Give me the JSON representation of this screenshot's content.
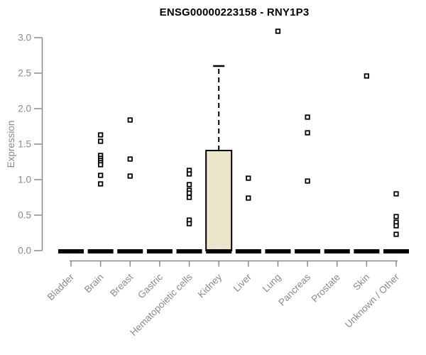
{
  "chart_data": {
    "type": "boxplot",
    "title": "ENSG00000223158 - RNY1P3",
    "ylabel": "Expression",
    "xlabel": "",
    "ylim": [
      0,
      3.0
    ],
    "yticks": [
      0.0,
      0.5,
      1.0,
      1.5,
      2.0,
      2.5,
      3.0
    ],
    "grid": false,
    "legend": false,
    "marker": "open-square",
    "categories": [
      "Bladder",
      "Brain",
      "Breast",
      "Gastric",
      "Hematopoietic cells",
      "Kidney",
      "Liver",
      "Lung",
      "Pancreas",
      "Prostate",
      "Skin",
      "Unknown / Other"
    ],
    "groups": [
      {
        "category": "Bladder",
        "median": 0,
        "points": []
      },
      {
        "category": "Brain",
        "median": 0,
        "points": [
          1.63,
          1.54,
          1.34,
          1.3,
          1.27,
          1.24,
          1.21,
          1.06,
          0.94
        ]
      },
      {
        "category": "Breast",
        "median": 0,
        "points": [
          1.84,
          1.29,
          1.05
        ]
      },
      {
        "category": "Gastric",
        "median": 0,
        "points": []
      },
      {
        "category": "Hematopoietic cells",
        "median": 0,
        "points": [
          1.13,
          1.08,
          0.93,
          0.85,
          0.81,
          0.75,
          0.43,
          0.38
        ]
      },
      {
        "category": "Kidney",
        "median": 0,
        "box": {
          "q1": 0,
          "median": 0,
          "q3": 1.41,
          "whisker_low": 0,
          "whisker_high": 2.6
        },
        "points": []
      },
      {
        "category": "Liver",
        "median": 0,
        "points": [
          1.02,
          0.74
        ]
      },
      {
        "category": "Lung",
        "median": 0,
        "points": [
          3.09
        ]
      },
      {
        "category": "Pancreas",
        "median": 0,
        "points": [
          1.88,
          1.66,
          0.98
        ]
      },
      {
        "category": "Prostate",
        "median": 0,
        "points": []
      },
      {
        "category": "Skin",
        "median": 0,
        "points": [
          2.46
        ]
      },
      {
        "category": "Unknown / Other",
        "median": 0,
        "points": [
          0.8,
          0.48,
          0.4,
          0.35,
          0.23
        ]
      }
    ],
    "colors": {
      "axis": "#8a8a8a",
      "tick_label": "#8a8a8a",
      "title": "#000000",
      "box_fill": "#ebe6cb",
      "box_stroke": "#000000",
      "marker_stroke": "#000000",
      "marker_fill": "#ffffff",
      "zero_bar": "#000000",
      "background": "#ffffff"
    }
  }
}
